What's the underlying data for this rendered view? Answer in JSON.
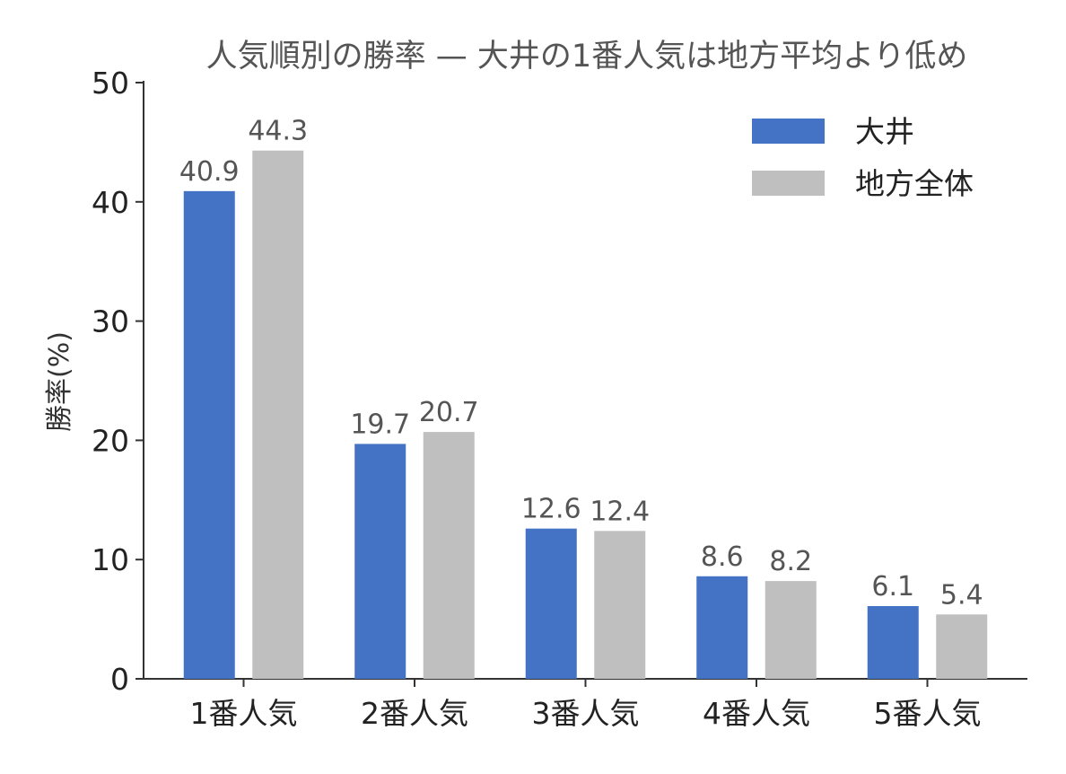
{
  "chart_data": {
    "type": "bar",
    "title": "人気順別の勝率 — 大井の1番人気は地方平均より低め",
    "xlabel": "",
    "ylabel": "勝率(%)",
    "ylim": [
      0,
      50
    ],
    "yticks": [
      0,
      10,
      20,
      30,
      40,
      50
    ],
    "grid": false,
    "legend_position": "top-right",
    "categories": [
      "1番人気",
      "2番人気",
      "3番人気",
      "4番人気",
      "5番人気"
    ],
    "series": [
      {
        "name": "大井",
        "color": "#4472C4",
        "values": [
          40.9,
          19.7,
          12.6,
          8.6,
          6.1
        ],
        "labels": [
          "40.9",
          "19.7",
          "12.6",
          "8.6",
          "6.1"
        ]
      },
      {
        "name": "地方全体",
        "color": "#BFBFBF",
        "values": [
          44.3,
          20.7,
          12.4,
          8.2,
          5.4
        ],
        "labels": [
          "44.3",
          "20.7",
          "12.4",
          "8.2",
          "5.4"
        ]
      }
    ]
  }
}
